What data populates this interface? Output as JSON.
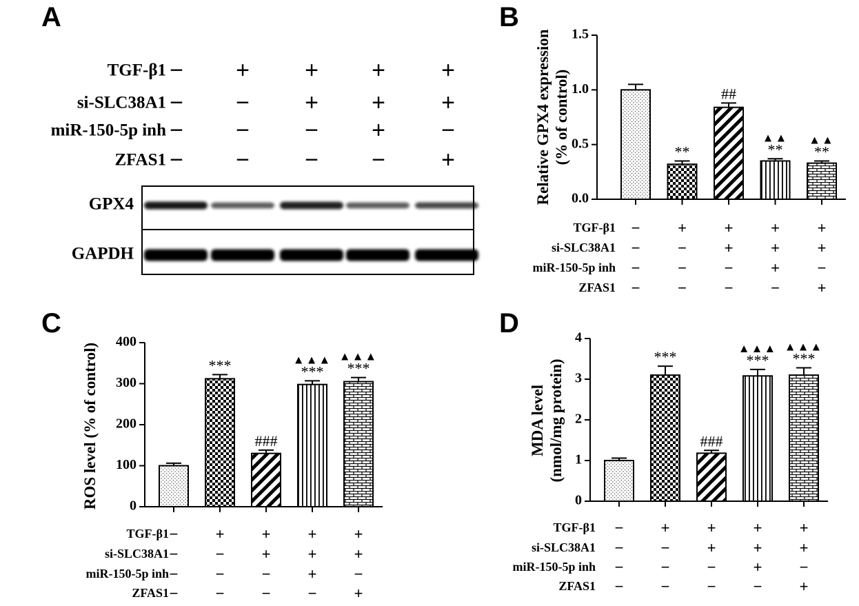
{
  "treatment_rows": [
    {
      "label": "TGF-β1",
      "signs": [
        "−",
        "+",
        "+",
        "+",
        "+"
      ]
    },
    {
      "label": "si-SLC38A1",
      "signs": [
        "−",
        "−",
        "+",
        "+",
        "+"
      ]
    },
    {
      "label": "miR-150-5p inh",
      "signs": [
        "−",
        "−",
        "−",
        "+",
        "−"
      ]
    },
    {
      "label": "ZFAS1",
      "signs": [
        "−",
        "−",
        "−",
        "−",
        "+"
      ]
    }
  ],
  "panel_a": {
    "letter": "A",
    "blots": [
      {
        "label": "GPX4",
        "intensities": [
          0.85,
          0.45,
          0.8,
          0.45,
          0.55
        ]
      },
      {
        "label": "GAPDH",
        "intensities": [
          1.0,
          1.0,
          1.0,
          1.0,
          1.0
        ]
      }
    ]
  },
  "chart_data": [
    {
      "panel": "B",
      "type": "bar",
      "title": "",
      "xlabel": "",
      "ylabel": "Relative GPX4 expression\n(% of control)",
      "categories": [
        "Control",
        "TGF-β1",
        "TGF-β1 + si-SLC38A1",
        "TGF-β1 + si-SLC38A1 + miR-150-5p inh",
        "TGF-β1 + si-SLC38A1 + ZFAS1"
      ],
      "values": [
        1.0,
        0.32,
        0.84,
        0.35,
        0.33
      ],
      "errors": [
        0.05,
        0.03,
        0.04,
        0.02,
        0.02
      ],
      "annotations": [
        "",
        "**",
        "##",
        "▲▲\n**",
        "▲▲\n**"
      ],
      "ylim": [
        0,
        1.5
      ],
      "yticks": [
        "0.0",
        "0.5",
        "1.0",
        "1.5"
      ],
      "patterns": [
        "dots",
        "checker",
        "diag",
        "vert",
        "brick"
      ],
      "grid": false
    },
    {
      "panel": "C",
      "type": "bar",
      "title": "",
      "xlabel": "",
      "ylabel": "ROS level (% of control)",
      "categories": [
        "Control",
        "TGF-β1",
        "TGF-β1 + si-SLC38A1",
        "TGF-β1 + si-SLC38A1 + miR-150-5p inh",
        "TGF-β1 + si-SLC38A1 + ZFAS1"
      ],
      "values": [
        100,
        312,
        130,
        298,
        305
      ],
      "errors": [
        6,
        10,
        8,
        9,
        10
      ],
      "annotations": [
        "",
        "***",
        "###",
        "▲▲▲\n***",
        "▲▲▲\n***"
      ],
      "ylim": [
        0,
        400
      ],
      "yticks": [
        "0",
        "100",
        "200",
        "300",
        "400"
      ],
      "patterns": [
        "dots",
        "checker",
        "diag",
        "vert",
        "brick"
      ],
      "grid": false
    },
    {
      "panel": "D",
      "type": "bar",
      "title": "",
      "xlabel": "",
      "ylabel": "MDA level\n(nmol/mg protein)",
      "categories": [
        "Control",
        "TGF-β1",
        "TGF-β1 + si-SLC38A1",
        "TGF-β1 + si-SLC38A1 + miR-150-5p inh",
        "TGF-β1 + si-SLC38A1 + ZFAS1"
      ],
      "values": [
        1.0,
        3.1,
        1.18,
        3.08,
        3.1
      ],
      "errors": [
        0.06,
        0.22,
        0.07,
        0.16,
        0.18
      ],
      "annotations": [
        "",
        "***",
        "###",
        "▲▲▲\n***",
        "▲▲▲\n***"
      ],
      "ylim": [
        0,
        4
      ],
      "yticks": [
        "0",
        "1",
        "2",
        "3",
        "4"
      ],
      "patterns": [
        "dots",
        "checker",
        "diag",
        "vert",
        "brick"
      ],
      "grid": false
    }
  ]
}
